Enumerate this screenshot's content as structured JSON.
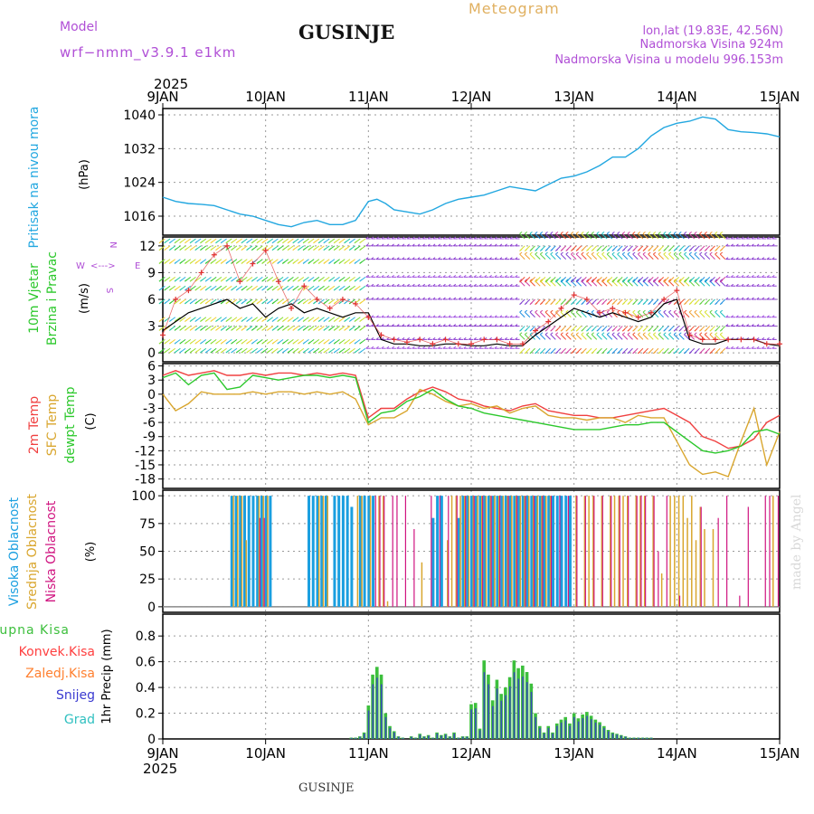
{
  "header": {
    "model_label": "Model",
    "model_name": "wrf−nmm_v3.9.1 e1km",
    "meteogram": "Meteogram",
    "station": "GUSINJE",
    "lonlat": "lon,lat (19.83E, 42.56N)",
    "altitude": "Nadmorska Visina 924m",
    "model_altitude": "Nadmorska Visina u modelu 996.153m",
    "year_top": "2025",
    "year_bottom": "2025",
    "footer_station": "GUSINJE",
    "credit": "made by Angel"
  },
  "colors": {
    "pressure": "#22a7e0",
    "axis": "#000000",
    "grid": "#9a9a9a",
    "purple": "#b04fd6",
    "meteogram": "#e0b060",
    "temp_2m": "#f04040",
    "temp_sfc": "#d9a62e",
    "dewpt": "#2cc82c",
    "cloud_high": "#1a9fe0",
    "cloud_mid": "#d9a62e",
    "cloud_low": "#d01580",
    "precip_total": "#3cbf3c",
    "precip_conv": "#ff4040",
    "precip_frz": "#ff8030",
    "precip_snow": "#3a3ad0",
    "precip_grad": "#30c0c0",
    "wind_speed": "#000000",
    "gust_marker": "#e03030"
  },
  "chart_data": [
    {
      "type": "line",
      "title": "Pritisak na nivou mora",
      "ylabel": "(hPa)",
      "yticks": [
        1016,
        1024,
        1032,
        1040
      ],
      "ylim": [
        1011.5,
        1041.5
      ],
      "xlim": [
        0,
        144
      ],
      "grid": true,
      "x_hours": [
        0,
        3,
        6,
        9,
        12,
        15,
        18,
        21,
        24,
        27,
        30,
        33,
        36,
        39,
        42,
        45,
        48,
        50,
        52,
        54,
        57,
        60,
        63,
        66,
        69,
        72,
        75,
        78,
        81,
        84,
        87,
        90,
        93,
        96,
        99,
        102,
        105,
        108,
        111,
        114,
        117,
        120,
        123,
        126,
        129,
        132,
        135,
        138,
        141,
        144
      ],
      "series": [
        {
          "values": [
            1020.5,
            1019.5,
            1019.0,
            1018.8,
            1018.5,
            1017.5,
            1016.5,
            1016.0,
            1015.0,
            1014.0,
            1013.5,
            1014.5,
            1015.0,
            1014.0,
            1014.0,
            1015.0,
            1019.5,
            1020.0,
            1019.0,
            1017.5,
            1017.0,
            1016.5,
            1017.5,
            1019.0,
            1020.0,
            1020.5,
            1021.0,
            1022.0,
            1023.0,
            1022.5,
            1022.0,
            1023.5,
            1025.0,
            1025.5,
            1026.5,
            1028.0,
            1030.0,
            1030.0,
            1032.0,
            1035.0,
            1037.0,
            1038.0,
            1038.5,
            1039.5,
            1039.0,
            1036.5,
            1036.0,
            1035.8,
            1035.5,
            1034.8
          ]
        }
      ]
    },
    {
      "type": "line",
      "title": "10m Vjetar",
      "subtitle": "Brzina i Pravac",
      "ylabel": "(m/s)",
      "compass": {
        "west": "W",
        "east": "E",
        "north": "N",
        "south": "S"
      },
      "yticks": [
        0,
        3,
        6,
        9,
        12
      ],
      "ylim": [
        -1,
        13
      ],
      "xlim": [
        0,
        144
      ],
      "grid": true,
      "x_hours": [
        0,
        3,
        6,
        9,
        12,
        15,
        18,
        21,
        24,
        27,
        30,
        33,
        36,
        39,
        42,
        45,
        48,
        51,
        54,
        57,
        60,
        63,
        66,
        69,
        72,
        75,
        78,
        81,
        84,
        87,
        90,
        93,
        96,
        99,
        102,
        105,
        108,
        111,
        114,
        117,
        120,
        123,
        126,
        129,
        132,
        135,
        138,
        141,
        144
      ],
      "series": [
        {
          "name": "speed",
          "values": [
            2.5,
            3.5,
            4.5,
            5.0,
            5.5,
            6.0,
            5.0,
            5.5,
            4.0,
            5.0,
            5.5,
            4.5,
            5.0,
            4.5,
            4.0,
            4.5,
            4.5,
            1.5,
            1.0,
            1.0,
            0.8,
            0.8,
            1.0,
            1.0,
            0.8,
            0.8,
            1.0,
            0.8,
            0.8,
            2.0,
            3.0,
            4.0,
            5.0,
            4.5,
            4.0,
            4.5,
            4.0,
            3.5,
            4.0,
            5.5,
            6.0,
            1.5,
            1.0,
            1.0,
            1.5,
            1.5,
            1.5,
            1.0,
            0.8
          ]
        },
        {
          "name": "gust",
          "values": [
            2.0,
            6.0,
            7.0,
            9.0,
            11.0,
            12.0,
            8.0,
            10.0,
            11.5,
            8.0,
            5.0,
            7.5,
            6.0,
            5.0,
            6.0,
            5.5,
            4.0,
            2.0,
            1.5,
            1.2,
            1.5,
            1.0,
            1.5,
            1.0,
            1.0,
            1.5,
            1.5,
            1.0,
            1.0,
            2.5,
            3.5,
            5.0,
            6.5,
            6.0,
            4.5,
            5.0,
            4.5,
            4.0,
            4.5,
            6.0,
            7.0,
            2.0,
            1.5,
            1.5,
            1.5,
            1.5,
            1.5,
            1.0,
            1.0
          ]
        }
      ]
    },
    {
      "type": "line",
      "title": "2m Temp",
      "subtitle": "SFC Temp",
      "extra_title": "dewpt Temp",
      "ylabel": "(C)",
      "yticks": [
        -18,
        -15,
        -12,
        -9,
        -6,
        -3,
        0,
        3,
        6
      ],
      "ylim": [
        -20,
        6.5
      ],
      "xlim": [
        0,
        144
      ],
      "grid": true,
      "x_hours": [
        0,
        3,
        6,
        9,
        12,
        15,
        18,
        21,
        24,
        27,
        30,
        33,
        36,
        39,
        42,
        45,
        48,
        51,
        54,
        57,
        60,
        63,
        66,
        69,
        72,
        75,
        78,
        81,
        84,
        87,
        90,
        93,
        96,
        99,
        102,
        105,
        108,
        111,
        114,
        117,
        120,
        123,
        126,
        129,
        132,
        135,
        138,
        141,
        144
      ],
      "series": [
        {
          "name": "2m Temp",
          "values": [
            4.0,
            5.0,
            4.0,
            4.5,
            5.0,
            4.0,
            4.0,
            4.5,
            4.0,
            4.5,
            4.5,
            4.0,
            4.5,
            4.0,
            4.5,
            4.0,
            -5.0,
            -3.0,
            -3.0,
            -1.0,
            0.5,
            1.5,
            0.5,
            -1.0,
            -1.5,
            -2.5,
            -3.0,
            -3.5,
            -2.5,
            -2.0,
            -3.5,
            -4.0,
            -4.5,
            -4.5,
            -5.0,
            -5.0,
            -4.5,
            -4.0,
            -3.5,
            -3.0,
            -4.5,
            -6.0,
            -9.0,
            -10.0,
            -11.5,
            -11.0,
            -9.5,
            -6.0,
            -4.5
          ]
        },
        {
          "name": "SFC Temp",
          "values": [
            0.0,
            -3.5,
            -2.0,
            0.5,
            0.0,
            0.0,
            0.0,
            0.5,
            0.0,
            0.5,
            0.5,
            0.0,
            0.5,
            0.0,
            0.5,
            -1.0,
            -6.5,
            -5.0,
            -5.0,
            -3.5,
            1.0,
            0.0,
            -1.5,
            -2.5,
            -2.0,
            -3.0,
            -2.5,
            -4.0,
            -3.0,
            -2.5,
            -4.5,
            -5.0,
            -5.0,
            -5.5,
            -5.0,
            -5.0,
            -6.0,
            -4.5,
            -5.0,
            -5.0,
            -10.0,
            -15.0,
            -17.0,
            -16.5,
            -17.5,
            -10.0,
            -3.0,
            -15.0,
            -8.0
          ]
        },
        {
          "name": "dewpt Temp",
          "values": [
            3.5,
            4.5,
            2.0,
            4.0,
            4.5,
            1.0,
            1.5,
            4.0,
            3.5,
            3.0,
            3.5,
            4.0,
            4.0,
            3.5,
            4.0,
            3.5,
            -6.0,
            -4.0,
            -3.5,
            -1.5,
            -0.5,
            1.0,
            -1.0,
            -2.5,
            -3.0,
            -4.0,
            -4.5,
            -5.0,
            -5.5,
            -6.0,
            -6.5,
            -7.0,
            -7.5,
            -7.5,
            -7.5,
            -7.0,
            -6.5,
            -6.5,
            -6.0,
            -6.0,
            -8.0,
            -10.0,
            -12.0,
            -12.5,
            -12.0,
            -11.0,
            -8.0,
            -7.5,
            -8.5
          ]
        }
      ]
    },
    {
      "type": "bar",
      "title": "Visoka Oblacnost",
      "subtitle": "Srednja Oblacnost",
      "extra_title": "Niska Oblacnost",
      "ylabel": "(%)",
      "yticks": [
        0,
        25,
        50,
        75,
        100
      ],
      "ylim": [
        -5,
        105
      ],
      "xlim": [
        0,
        144
      ],
      "grid": true,
      "high_hours": [
        16,
        17,
        18,
        19,
        20,
        21,
        22,
        23,
        24,
        25,
        34,
        35,
        36,
        37,
        38,
        40,
        41,
        42,
        43,
        44,
        46,
        47,
        48,
        49,
        63,
        64,
        65,
        69,
        70,
        71,
        72,
        73,
        74,
        75,
        76,
        77,
        78,
        79,
        80,
        81,
        82,
        83,
        84,
        85,
        86,
        87,
        88,
        89,
        90,
        91,
        92,
        93,
        94,
        95
      ],
      "high_values": [
        100,
        100,
        100,
        100,
        100,
        100,
        100,
        100,
        100,
        100,
        100,
        100,
        100,
        100,
        100,
        100,
        100,
        100,
        100,
        90,
        100,
        100,
        100,
        100,
        80,
        100,
        100,
        80,
        100,
        100,
        100,
        100,
        100,
        100,
        100,
        100,
        100,
        100,
        100,
        100,
        100,
        100,
        100,
        100,
        100,
        100,
        100,
        100,
        100,
        100,
        100,
        100,
        100,
        100
      ],
      "mid_hours": [
        16,
        17,
        18,
        19,
        22,
        23,
        24,
        36,
        37,
        38,
        45,
        46,
        48,
        50,
        51,
        52,
        60,
        66,
        67,
        68,
        69,
        70,
        71,
        72,
        73,
        74,
        75,
        76,
        77,
        78,
        79,
        80,
        81,
        82,
        83,
        84,
        85,
        86,
        87,
        88,
        89,
        90,
        96,
        98,
        99,
        100,
        102,
        104,
        105,
        106,
        107,
        108,
        110,
        111,
        112,
        114,
        116,
        118,
        119,
        120,
        121,
        122,
        123,
        124,
        125,
        126,
        128,
        142
      ],
      "mid_values": [
        100,
        100,
        100,
        60,
        100,
        100,
        100,
        100,
        100,
        100,
        100,
        100,
        100,
        100,
        100,
        5,
        40,
        60,
        100,
        100,
        100,
        100,
        100,
        100,
        100,
        100,
        100,
        100,
        100,
        100,
        100,
        100,
        100,
        100,
        100,
        100,
        100,
        100,
        100,
        100,
        100,
        100,
        100,
        100,
        100,
        100,
        100,
        100,
        100,
        100,
        100,
        100,
        100,
        100,
        100,
        100,
        30,
        100,
        100,
        100,
        100,
        80,
        100,
        60,
        90,
        70,
        70,
        100
      ],
      "low_hours": [
        22,
        23,
        49,
        50,
        51,
        53,
        54,
        56,
        58,
        62,
        64,
        66,
        68,
        70,
        72,
        74,
        76,
        78,
        80,
        82,
        84,
        86,
        88,
        90,
        92,
        94,
        96,
        98,
        100,
        102,
        104,
        106,
        108,
        110,
        111,
        112,
        114,
        115,
        117,
        120,
        125,
        129,
        131,
        134,
        136,
        140,
        141,
        143
      ],
      "low_values": [
        80,
        80,
        100,
        100,
        100,
        100,
        100,
        100,
        70,
        100,
        100,
        100,
        100,
        100,
        100,
        100,
        100,
        100,
        100,
        100,
        100,
        100,
        100,
        100,
        100,
        100,
        100,
        100,
        100,
        100,
        100,
        100,
        100,
        100,
        100,
        100,
        100,
        50,
        100,
        10,
        90,
        80,
        100,
        10,
        90,
        100,
        100,
        100
      ]
    },
    {
      "type": "bar",
      "title": "Ukupna Kisa",
      "subtitle": "Konvek.Kisa",
      "extra_title": "Zaledj.Kisa",
      "extra_title2": "Snijeg",
      "extra_title3": "Grad",
      "ylabel": "1hr Precip (mm)",
      "yticks": [
        0,
        0.2,
        0.4,
        0.6,
        0.8
      ],
      "ylim": [
        0,
        0.97
      ],
      "xlim": [
        0,
        144
      ],
      "grid": true,
      "hours": [
        44,
        45,
        46,
        47,
        48,
        49,
        50,
        51,
        52,
        53,
        54,
        55,
        56,
        58,
        59,
        60,
        61,
        62,
        63,
        64,
        65,
        66,
        67,
        68,
        69,
        70,
        71,
        72,
        73,
        74,
        75,
        76,
        77,
        78,
        79,
        80,
        81,
        82,
        83,
        84,
        85,
        86,
        87,
        88,
        89,
        90,
        91,
        92,
        93,
        94,
        95,
        96,
        97,
        98,
        99,
        100,
        101,
        102,
        103,
        104,
        105,
        106,
        107,
        108,
        109,
        110,
        111,
        112,
        113,
        114
      ],
      "values": [
        0.01,
        0.01,
        0.02,
        0.05,
        0.26,
        0.5,
        0.56,
        0.5,
        0.2,
        0.1,
        0.06,
        0.02,
        0.01,
        0.02,
        0.01,
        0.04,
        0.02,
        0.03,
        0.01,
        0.05,
        0.03,
        0.04,
        0.02,
        0.05,
        0.01,
        0.02,
        0.02,
        0.27,
        0.28,
        0.08,
        0.61,
        0.5,
        0.3,
        0.46,
        0.35,
        0.4,
        0.48,
        0.61,
        0.55,
        0.57,
        0.52,
        0.43,
        0.2,
        0.1,
        0.05,
        0.1,
        0.05,
        0.12,
        0.15,
        0.17,
        0.12,
        0.2,
        0.16,
        0.19,
        0.21,
        0.18,
        0.15,
        0.13,
        0.1,
        0.07,
        0.05,
        0.04,
        0.03,
        0.02,
        0.01,
        0.01,
        0.01,
        0.01,
        0.01,
        0.01
      ]
    }
  ],
  "wind_field": {
    "directions": [
      "W",
      "NW",
      "N",
      "NE",
      "E",
      "SE",
      "S",
      "SW"
    ],
    "rows_ms": [
      0.5,
      1.5,
      3,
      4,
      6,
      7.5,
      8.5,
      10.5,
      12,
      12.8
    ],
    "segments": [
      {
        "from_hour": 0,
        "to_hour": 48,
        "color_mode": "mixed-green-yellow"
      },
      {
        "from_hour": 48,
        "to_hour": 84,
        "color_mode": "purple"
      },
      {
        "from_hour": 84,
        "to_hour": 132,
        "color_mode": "mixed-rainbow"
      },
      {
        "from_hour": 132,
        "to_hour": 144,
        "color_mode": "purple"
      }
    ]
  },
  "x_axis": {
    "ticks": [
      "9JAN",
      "10JAN",
      "11JAN",
      "12JAN",
      "13JAN",
      "14JAN",
      "15JAN"
    ],
    "tick_hours": [
      0,
      24,
      48,
      72,
      96,
      120,
      144
    ]
  }
}
